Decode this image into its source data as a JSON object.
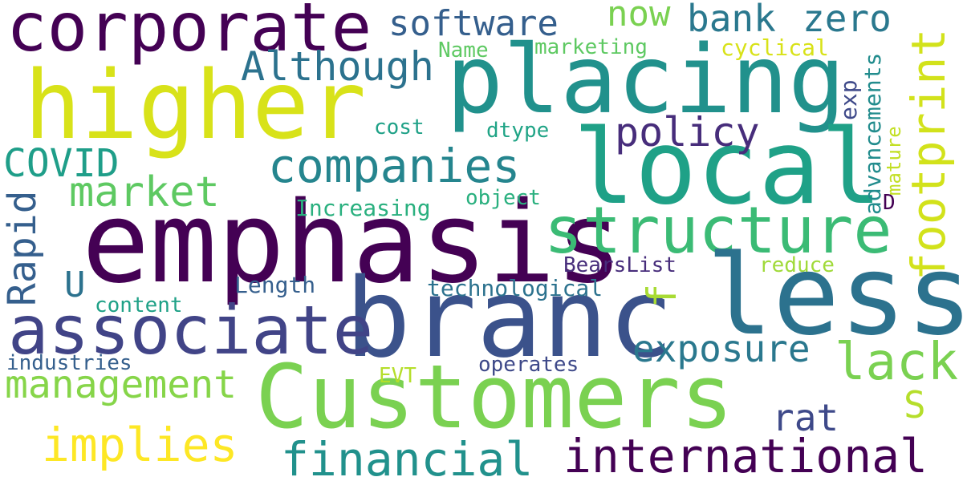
{
  "words": [
    {
      "text": "corporate",
      "color": "#440154"
    },
    {
      "text": "placing",
      "color": "#21918c"
    },
    {
      "text": "higher",
      "color": "#d8e219"
    },
    {
      "text": "local",
      "color": "#1fa187"
    },
    {
      "text": "emphasis",
      "color": "#440154"
    },
    {
      "text": "structure",
      "color": "#3bbb75"
    },
    {
      "text": "less",
      "color": "#2c728e"
    },
    {
      "text": "branc",
      "color": "#3b528b"
    },
    {
      "text": "associate",
      "color": "#414487"
    },
    {
      "text": "Customers",
      "color": "#7ad151"
    },
    {
      "text": "software",
      "color": "#355f8d"
    },
    {
      "text": "now",
      "color": "#7ad151"
    },
    {
      "text": "bank",
      "color": "#2a788e"
    },
    {
      "text": "zero",
      "color": "#2a788e"
    },
    {
      "text": "Although",
      "color": "#2c728e"
    },
    {
      "text": "companies",
      "color": "#25858e"
    },
    {
      "text": "policy",
      "color": "#472d7b"
    },
    {
      "text": "COVID",
      "color": "#1f9e89"
    },
    {
      "text": "market",
      "color": "#5ec962"
    },
    {
      "text": "footprint",
      "color": "#d2e21b"
    },
    {
      "text": "Rapid",
      "color": "#355f8d"
    },
    {
      "text": "U",
      "color": "#2c728e"
    },
    {
      "text": "f",
      "color": "#a8db34"
    },
    {
      "text": "exposure",
      "color": "#2a788e"
    },
    {
      "text": "lack",
      "color": "#7ad151"
    },
    {
      "text": "management",
      "color": "#86d549"
    },
    {
      "text": "S",
      "color": "#b5de2b"
    },
    {
      "text": "rat",
      "color": "#3e4989"
    },
    {
      "text": "implies",
      "color": "#fde725"
    },
    {
      "text": "financial",
      "color": "#21918c"
    },
    {
      "text": "international",
      "color": "#440154"
    },
    {
      "text": "Name",
      "color": "#5ec962"
    },
    {
      "text": "marketing",
      "color": "#5ec962"
    },
    {
      "text": "cyclical",
      "color": "#d8e219"
    },
    {
      "text": "exp",
      "color": "#3e4989"
    },
    {
      "text": "advancements",
      "color": "#228c8d"
    },
    {
      "text": "mature",
      "color": "#c2df23"
    },
    {
      "text": "cost",
      "color": "#1fa187"
    },
    {
      "text": "dtype",
      "color": "#20a486"
    },
    {
      "text": "object",
      "color": "#2ab07f"
    },
    {
      "text": "Increasing",
      "color": "#2ab07f"
    },
    {
      "text": "D",
      "color": "#440154"
    },
    {
      "text": "BearsList",
      "color": "#472d7b"
    },
    {
      "text": "reduce",
      "color": "#a0da39"
    },
    {
      "text": "Length",
      "color": "#355f8d"
    },
    {
      "text": "technological",
      "color": "#2c728e"
    },
    {
      "text": "content",
      "color": "#1fa187"
    },
    {
      "text": "industries",
      "color": "#355f8d"
    },
    {
      "text": "EVT",
      "color": "#b5de2b"
    },
    {
      "text": "operates",
      "color": "#3e4989"
    }
  ]
}
